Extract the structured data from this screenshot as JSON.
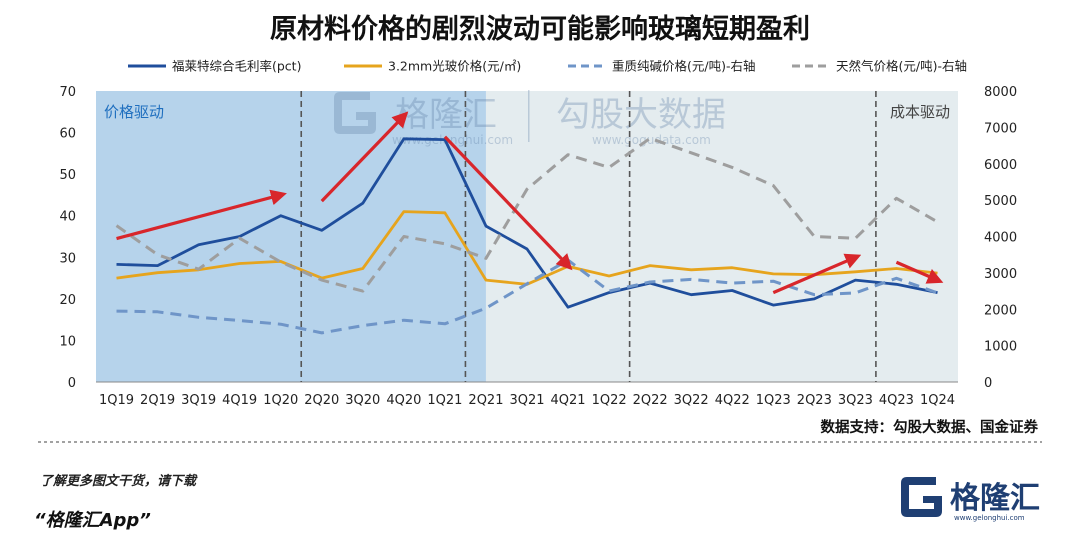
{
  "chart_data": {
    "type": "line",
    "title": "原材料价格的剧烈波动可能影响玻璃短期盈利",
    "categories": [
      "1Q19",
      "2Q19",
      "3Q19",
      "4Q19",
      "1Q20",
      "2Q20",
      "3Q20",
      "4Q20",
      "1Q21",
      "2Q21",
      "3Q21",
      "4Q21",
      "1Q22",
      "2Q22",
      "3Q22",
      "4Q22",
      "1Q23",
      "2Q23",
      "3Q23",
      "4Q23",
      "1Q24"
    ],
    "left_axis": {
      "ylim": [
        0,
        70
      ],
      "ticks": [
        "0",
        "10",
        "20",
        "30",
        "40",
        "50",
        "60",
        "70"
      ]
    },
    "right_axis": {
      "ylim": [
        0,
        8000
      ],
      "ticks": [
        "0",
        "1000",
        "2000",
        "3000",
        "4000",
        "5000",
        "6000",
        "7000",
        "8000"
      ]
    },
    "series": [
      {
        "name": "福莱特综合毛利率(pct)",
        "axis": "left",
        "style": "solid",
        "color": "#1f4e9c",
        "values": [
          28.3,
          28,
          33,
          35,
          40,
          36.5,
          43,
          58.5,
          58.3,
          37.5,
          32,
          18,
          21.5,
          23.8,
          21,
          22,
          18.5,
          20,
          24.5,
          23.5,
          21.5
        ]
      },
      {
        "name": "3.2mm光玻价格(元/㎡)",
        "axis": "left",
        "style": "solid",
        "color": "#e6a41d",
        "values": [
          25,
          26.3,
          27,
          28.5,
          29,
          25,
          27.3,
          41,
          40.7,
          24.5,
          23.5,
          27.8,
          25.5,
          28,
          27,
          27.5,
          26,
          25.8,
          26.5,
          27.3,
          26.2
        ]
      },
      {
        "name": "重质纯碱价格(元/吨)-右轴",
        "axis": "right",
        "style": "dashed",
        "color": "#6f95c8",
        "values": [
          1950,
          1930,
          1780,
          1690,
          1590,
          1350,
          1550,
          1700,
          1600,
          2030,
          2700,
          3350,
          2500,
          2750,
          2820,
          2720,
          2770,
          2400,
          2450,
          2850,
          2450
        ]
      },
      {
        "name": "天然气价格(元/吨)-右轴",
        "axis": "right",
        "style": "dashed",
        "color": "#9e9e9e",
        "values": [
          4300,
          3500,
          3100,
          3950,
          3300,
          2800,
          2500,
          4000,
          3800,
          3400,
          5300,
          6250,
          5900,
          6700,
          6300,
          5900,
          5400,
          4000,
          3950,
          5050,
          4400
        ]
      }
    ],
    "regions": [
      {
        "label": "价格驱动",
        "from": "1Q19",
        "to": "2Q21",
        "color": "#a9cbe8"
      },
      {
        "label": "成本驱动",
        "from": "2Q21",
        "to": "1Q24",
        "color": "#dbe5ea"
      }
    ],
    "dashed_dividers_after": [
      "1Q20",
      "1Q21",
      "1Q22",
      "3Q23"
    ],
    "trend_arrows": [
      {
        "from": [
          "1Q19",
          34.5
        ],
        "to": [
          "1Q20",
          45
        ],
        "color": "#d8262b"
      },
      {
        "from": [
          "2Q20",
          43.5
        ],
        "to": [
          "4Q20",
          64
        ],
        "color": "#d8262b"
      },
      {
        "from": [
          "1Q21",
          59
        ],
        "to": [
          "4Q21",
          28
        ],
        "color": "#d8262b"
      },
      {
        "from": [
          "1Q23",
          21.5
        ],
        "to": [
          "3Q23",
          30
        ],
        "color": "#d8262b"
      },
      {
        "from": [
          "4Q23",
          28.8
        ],
        "to": [
          "1Q24",
          24.5
        ],
        "color": "#d8262b"
      }
    ],
    "grid": false,
    "legend_position": "top"
  },
  "watermark": {
    "brand": "格隆汇",
    "brand_url": "www.gelonghui.com",
    "partner": "勾股大数据",
    "partner_url": "www.gogudata.com"
  },
  "source": "数据支持：勾股大数据、国金证券",
  "footer": {
    "promo_line": "了解更多图文干货，请下载",
    "app_name": "“格隆汇App”",
    "logo_text": "格隆汇",
    "logo_url": "www.gelonghui.com"
  },
  "colors": {
    "accent_red": "#d8262b",
    "region_blue": "#a9cbe8",
    "region_grey": "#dbe5ea",
    "brand_navy": "#1f3f73"
  }
}
